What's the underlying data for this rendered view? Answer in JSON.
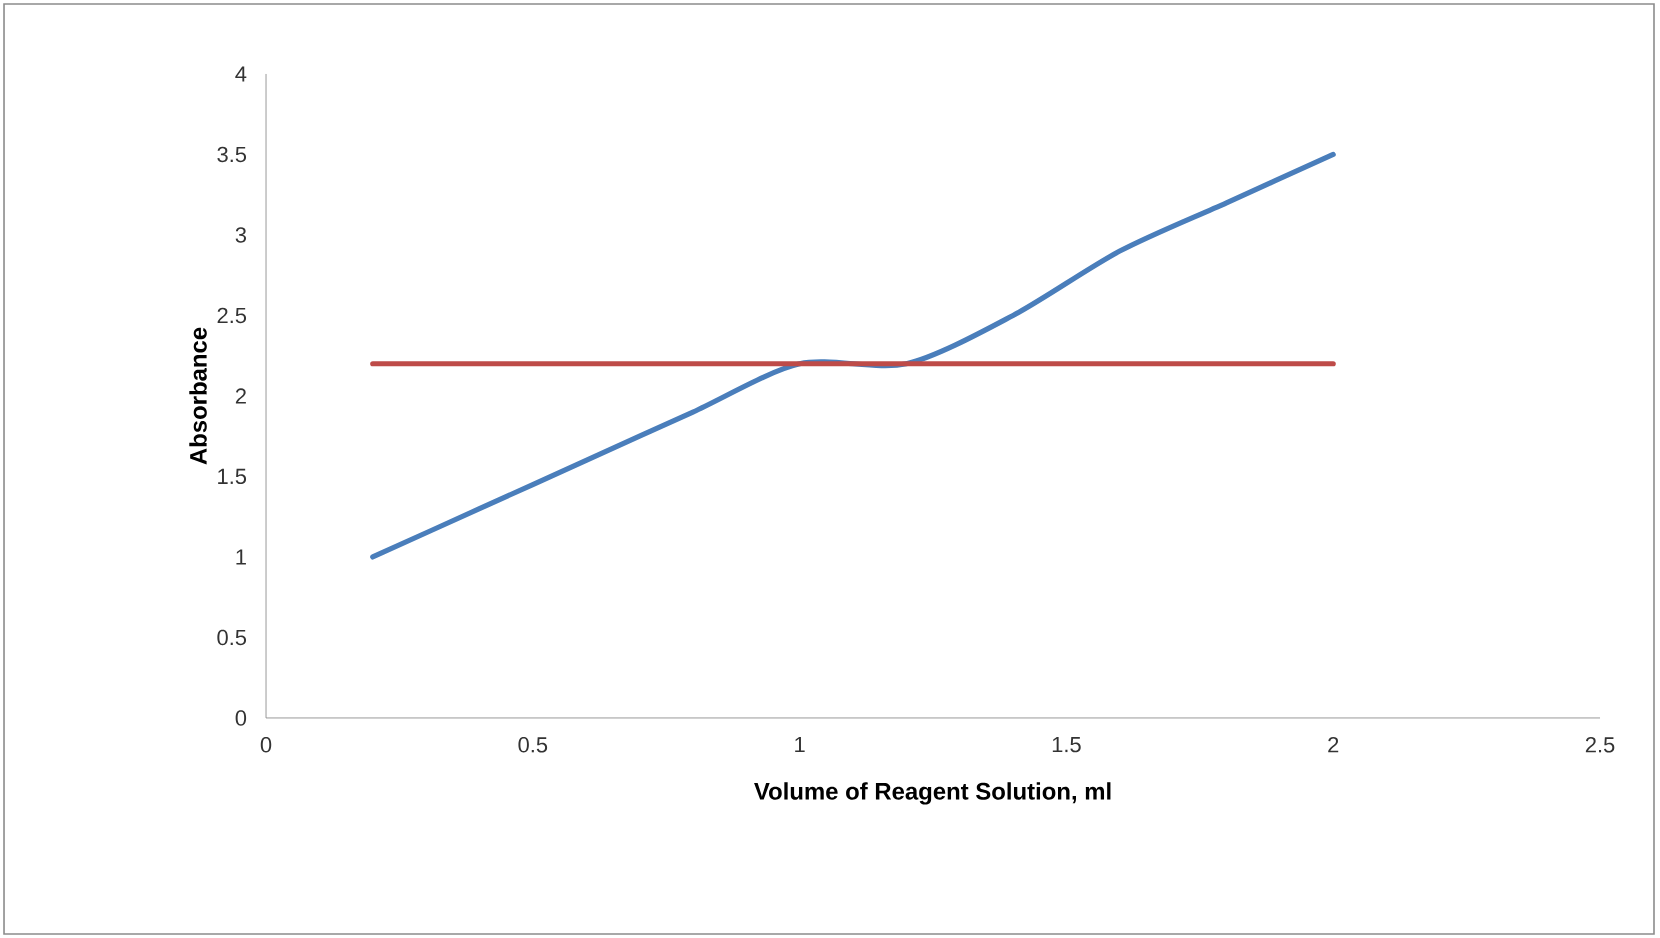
{
  "chart_data": {
    "type": "line",
    "xlabel": "Volume of Reagent Solution, ml",
    "ylabel": "Absorbance",
    "xlim": [
      0,
      2.5
    ],
    "xticks": [
      0,
      0.5,
      1,
      1.5,
      2,
      2.5
    ],
    "ylim": [
      0,
      4
    ],
    "yticks": [
      0,
      0.5,
      1,
      1.5,
      2,
      2.5,
      3,
      3.5,
      4
    ],
    "grid": false,
    "legend": false,
    "marker": "none",
    "line_style": "solid",
    "series": [
      {
        "color": "#4a7ebb",
        "x": [
          0.2,
          0.4,
          0.6,
          0.8,
          1.0,
          1.2,
          1.4,
          1.6,
          1.8,
          2.0
        ],
        "values": [
          1.0,
          1.3,
          1.6,
          1.9,
          2.2,
          2.2,
          2.5,
          2.9,
          3.2,
          3.5
        ]
      },
      {
        "color": "#be4b48",
        "x": [
          0.2,
          2.0
        ],
        "values": [
          2.2,
          2.2
        ]
      }
    ]
  }
}
